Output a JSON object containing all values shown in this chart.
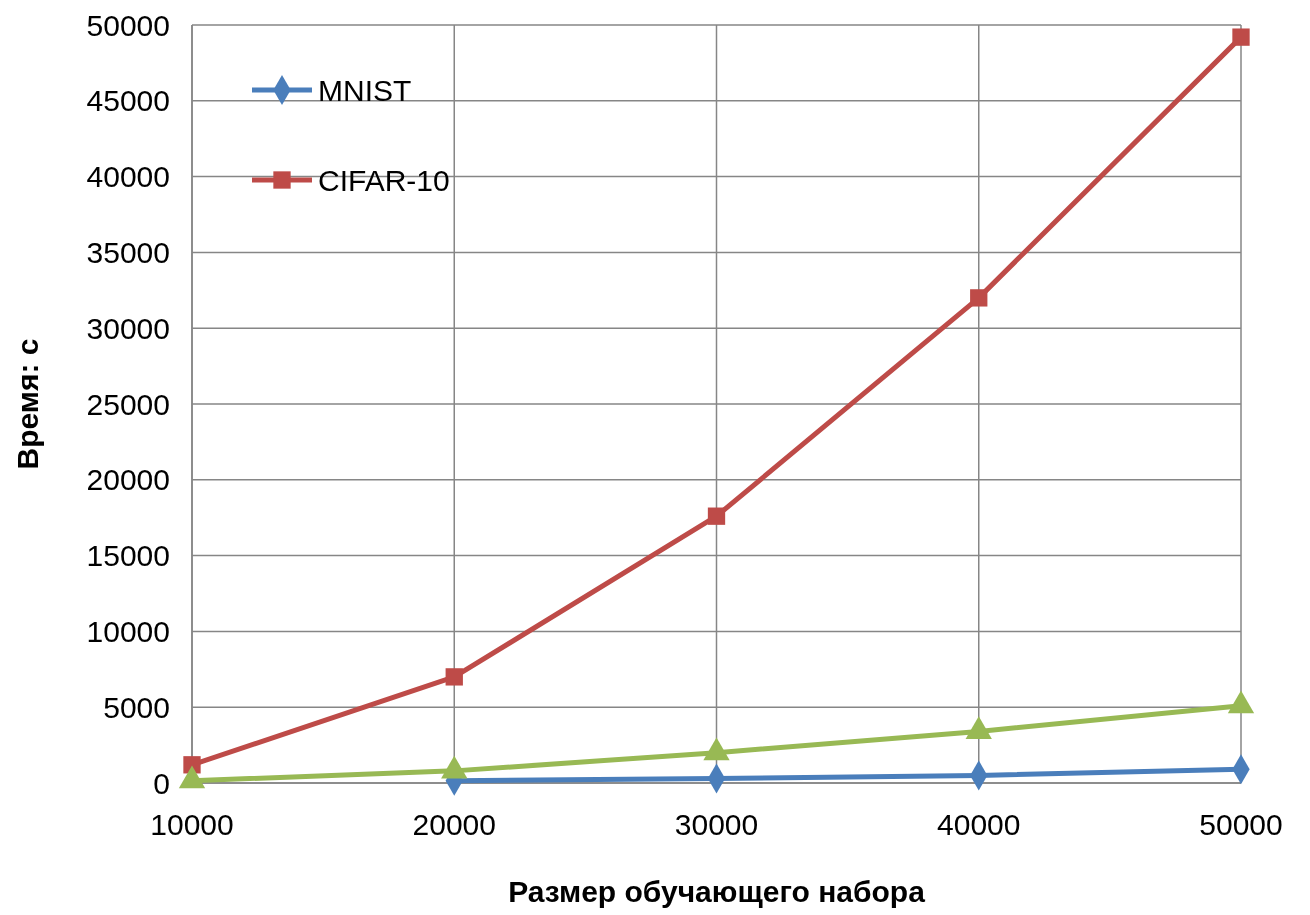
{
  "chart_data": {
    "type": "line",
    "xlabel": "Размер обучающего набора",
    "ylabel": "Время: с",
    "x": [
      10000,
      20000,
      30000,
      40000,
      50000
    ],
    "series": [
      {
        "name": "MNIST",
        "color": "#4a7ebb",
        "marker": "diamond",
        "values": [
          null,
          150,
          300,
          500,
          900
        ]
      },
      {
        "name": "CIFAR-10",
        "color": "#be4b48",
        "marker": "square",
        "values": [
          1200,
          7000,
          17600,
          32000,
          49200
        ]
      },
      {
        "color": "#98b954",
        "marker": "triangle",
        "values": [
          150,
          800,
          2000,
          3400,
          5100
        ]
      }
    ],
    "xlim": [
      10000,
      50000
    ],
    "xticks": [
      10000,
      20000,
      30000,
      40000,
      50000
    ],
    "ylim": [
      0,
      50000
    ],
    "yticks": [
      0,
      5000,
      10000,
      15000,
      20000,
      25000,
      30000,
      35000,
      40000,
      45000,
      50000
    ],
    "grid": true,
    "legend": "top left",
    "line_style": "solid"
  }
}
